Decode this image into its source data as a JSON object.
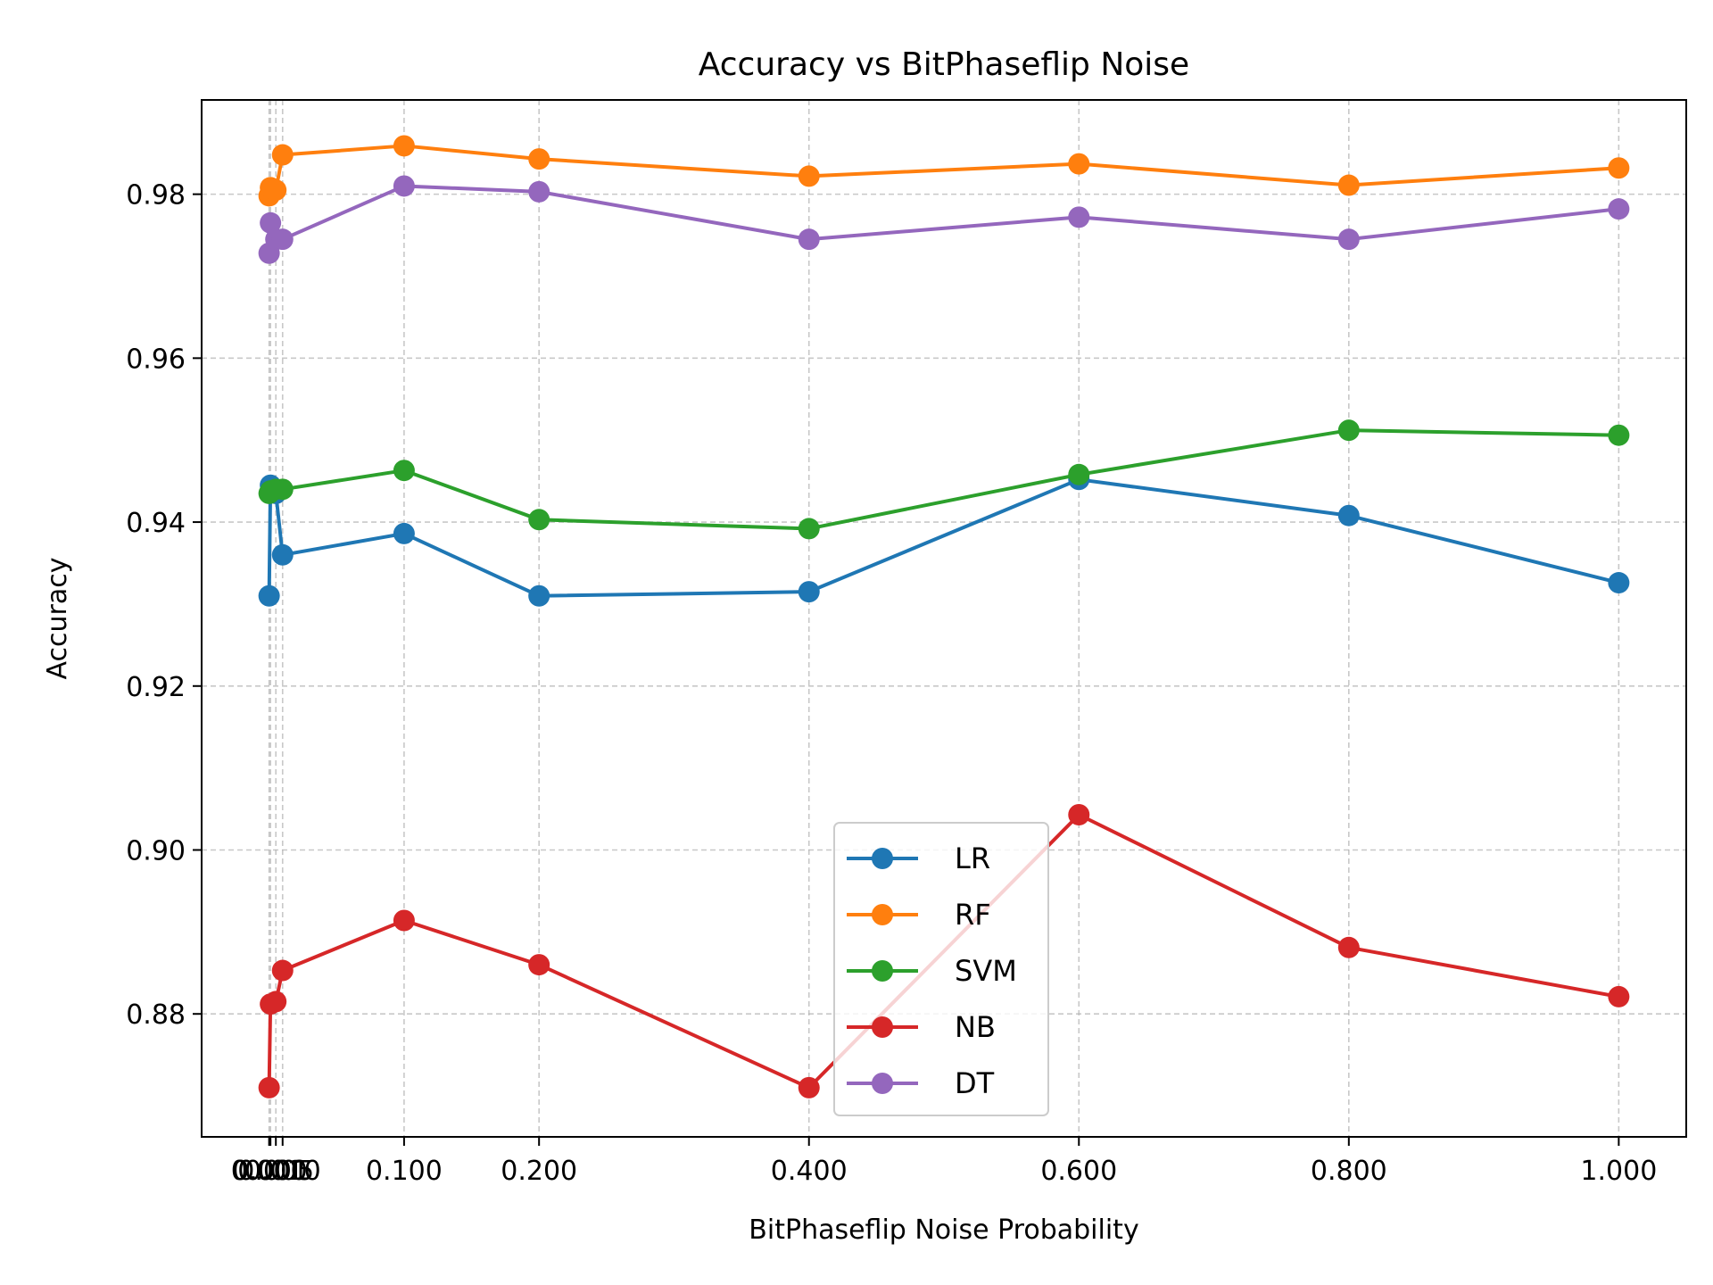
{
  "chart_data": {
    "type": "line",
    "title": "Accuracy vs BitPhaseflip Noise",
    "xlabel": "BitPhaseflip Noise Probability",
    "ylabel": "Accuracy",
    "xlim": [
      -0.05,
      1.05
    ],
    "ylim": [
      0.865,
      0.9915
    ],
    "xticks": [
      0.0,
      0.001,
      0.005,
      0.01,
      0.1,
      0.2,
      0.4,
      0.6,
      0.8,
      1.0
    ],
    "xtick_labels": [
      "0.000",
      "0.001",
      "0.005",
      "0.010",
      "0.100",
      "0.200",
      "0.400",
      "0.600",
      "0.800",
      "1.000"
    ],
    "yticks": [
      0.88,
      0.9,
      0.92,
      0.94,
      0.96,
      0.98
    ],
    "ytick_labels": [
      "0.88",
      "0.90",
      "0.92",
      "0.94",
      "0.96",
      "0.98"
    ],
    "grid": true,
    "legend_position": "lower-center",
    "x": [
      0.0,
      0.001,
      0.005,
      0.01,
      0.1,
      0.2,
      0.4,
      0.6,
      0.8,
      1.0
    ],
    "series": [
      {
        "name": "LR",
        "color": "#1f77b4",
        "values": [
          0.931,
          0.9445,
          0.9435,
          0.936,
          0.9386,
          0.931,
          0.9315,
          0.9452,
          0.9408,
          0.9326
        ]
      },
      {
        "name": "RF",
        "color": "#ff7f0e",
        "values": [
          0.9798,
          0.9808,
          0.9805,
          0.9848,
          0.9859,
          0.9843,
          0.9822,
          0.9837,
          0.9811,
          0.9832
        ]
      },
      {
        "name": "SVM",
        "color": "#2ca02c",
        "values": [
          0.9435,
          0.9438,
          0.944,
          0.944,
          0.9463,
          0.9403,
          0.9392,
          0.9458,
          0.9512,
          0.9506
        ]
      },
      {
        "name": "NB",
        "color": "#d62728",
        "values": [
          0.871,
          0.8812,
          0.8815,
          0.8853,
          0.8914,
          0.886,
          0.871,
          0.9043,
          0.8881,
          0.8821
        ]
      },
      {
        "name": "DT",
        "color": "#9467bd",
        "values": [
          0.9728,
          0.9765,
          0.9745,
          0.9745,
          0.981,
          0.9803,
          0.9745,
          0.9772,
          0.9745,
          0.9782
        ]
      }
    ]
  }
}
